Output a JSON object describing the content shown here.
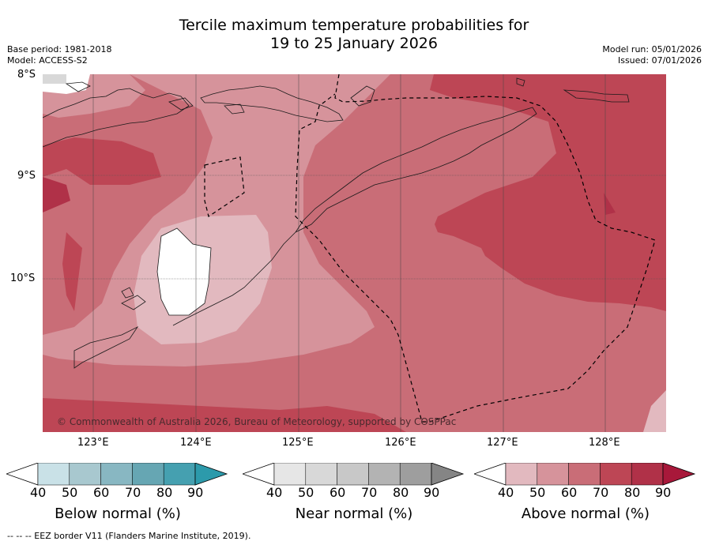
{
  "title": {
    "line1": "Tercile maximum temperature probabilities for",
    "line2": "19 to 25 January 2026"
  },
  "meta": {
    "base_period": "Base period: 1981-2018",
    "model": "Model: ACCESS-S2",
    "model_run": "Model run: 05/01/2026",
    "issued": "Issued: 07/01/2026"
  },
  "map": {
    "lat_labels": [
      "8°S",
      "9°S",
      "10°S"
    ],
    "lon_labels": [
      "123°E",
      "124°E",
      "125°E",
      "126°E",
      "127°E",
      "128°E"
    ],
    "copyright": "© Commonwealth of Australia 2026, Bureau of Meteorology, supported by COSPPac"
  },
  "colorbars": [
    {
      "name": "below",
      "title": "Below normal (%)",
      "ticks": [
        "40",
        "50",
        "60",
        "70",
        "80",
        "90"
      ],
      "colors": [
        "#c9e1e7",
        "#a8c8cf",
        "#88b7c2",
        "#66a6b3",
        "#45a0b0",
        "#2c9aab"
      ]
    },
    {
      "name": "near",
      "title": "Near normal (%)",
      "ticks": [
        "40",
        "50",
        "60",
        "70",
        "80",
        "90"
      ],
      "colors": [
        "#e6e6e6",
        "#d8d8d8",
        "#c8c8c8",
        "#b3b3b3",
        "#9e9e9e",
        "#858585"
      ]
    },
    {
      "name": "above",
      "title": "Above normal (%)",
      "ticks": [
        "40",
        "50",
        "60",
        "70",
        "80",
        "90"
      ],
      "colors": [
        "#e2b9bf",
        "#d6939b",
        "#c96d77",
        "#bd4655",
        "#b03148",
        "#a8183a"
      ]
    }
  ],
  "footnote": "--  --  -- EEZ border V11 (Flanders Marine Institute, 2019)."
}
